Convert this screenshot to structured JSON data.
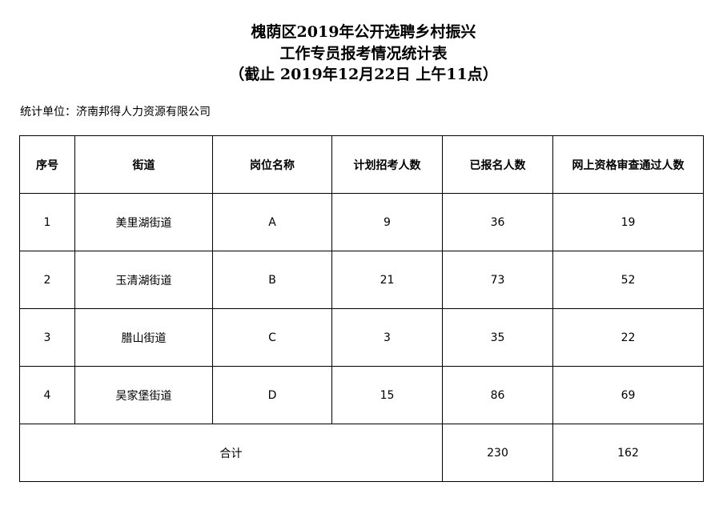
{
  "title": {
    "line1": "槐荫区2019年公开选聘乡村振兴",
    "line2": "工作专员报考情况统计表",
    "line3": "（截止 2019年12月22日 上午11点）"
  },
  "unit": "统计单位：济南邦得人力资源有限公司",
  "table": {
    "headers": [
      "序号",
      "街道",
      "岗位名称",
      "计划招考人数",
      "已报名人数",
      "网上资格审查通过人数"
    ],
    "rows": [
      [
        "1",
        "美里湖街道",
        "A",
        "9",
        "36",
        "19"
      ],
      [
        "2",
        "玉清湖街道",
        "B",
        "21",
        "73",
        "52"
      ],
      [
        "3",
        "腊山街道",
        "C",
        "3",
        "35",
        "22"
      ],
      [
        "4",
        "吴家堡街道",
        "D",
        "15",
        "86",
        "69"
      ]
    ],
    "total": {
      "label": "合计",
      "registered": "230",
      "passed": "162"
    }
  }
}
